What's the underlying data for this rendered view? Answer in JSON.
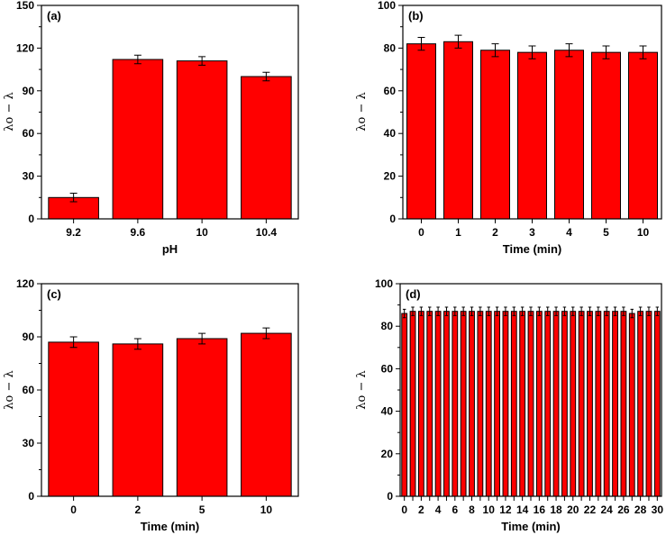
{
  "colors": {
    "bar_fill": "#ff0000",
    "bar_stroke": "#000000",
    "axis": "#000000"
  },
  "chart_data": [
    {
      "type": "bar",
      "panel_label": "(a)",
      "categories": [
        "9.2",
        "9.6",
        "10",
        "10.4"
      ],
      "values": [
        15,
        112,
        111,
        100
      ],
      "errors": [
        3,
        3,
        3,
        3
      ],
      "xlabel": "pH",
      "ylabel": "λo − λ",
      "ylim": [
        0,
        150
      ],
      "yticks": [
        0,
        30,
        60,
        90,
        120,
        150
      ]
    },
    {
      "type": "bar",
      "panel_label": "(b)",
      "categories": [
        "0",
        "1",
        "2",
        "3",
        "4",
        "5",
        "10"
      ],
      "values": [
        82,
        83,
        79,
        78,
        79,
        78,
        78
      ],
      "errors": [
        3,
        3,
        3,
        3,
        3,
        3,
        3
      ],
      "xlabel": "Time (min)",
      "ylabel": "λo − λ",
      "ylim": [
        0,
        100
      ],
      "yticks": [
        0,
        20,
        40,
        60,
        80,
        100
      ]
    },
    {
      "type": "bar",
      "panel_label": "(c)",
      "categories": [
        "0",
        "2",
        "5",
        "10"
      ],
      "values": [
        87,
        86,
        89,
        92
      ],
      "errors": [
        3,
        3,
        3,
        3
      ],
      "xlabel": "Time (min)",
      "ylabel": "λo − λ",
      "ylim": [
        0,
        120
      ],
      "yticks": [
        0,
        30,
        60,
        90,
        120
      ]
    },
    {
      "type": "bar",
      "panel_label": "(d)",
      "categories": [
        "0",
        "1",
        "2",
        "3",
        "4",
        "5",
        "6",
        "7",
        "8",
        "9",
        "10",
        "11",
        "12",
        "13",
        "14",
        "15",
        "16",
        "17",
        "18",
        "19",
        "20",
        "21",
        "22",
        "23",
        "24",
        "25",
        "26",
        "27",
        "28",
        "29",
        "30"
      ],
      "tick_labels": [
        "0",
        "",
        "2",
        "",
        "4",
        "",
        "6",
        "",
        "8",
        "",
        "10",
        "",
        "12",
        "",
        "14",
        "",
        "16",
        "",
        "18",
        "",
        "20",
        "",
        "22",
        "",
        "24",
        "",
        "26",
        "",
        "28",
        "",
        "30"
      ],
      "values": [
        86,
        87,
        87,
        87,
        87,
        87,
        87,
        87,
        87,
        87,
        87,
        87,
        87,
        87,
        87,
        87,
        87,
        87,
        87,
        87,
        87,
        87,
        87,
        87,
        87,
        87,
        87,
        86,
        87,
        87,
        87
      ],
      "errors": [
        2,
        2,
        2,
        2,
        2,
        2,
        2,
        2,
        2,
        2,
        2,
        2,
        2,
        2,
        2,
        2,
        2,
        2,
        2,
        2,
        2,
        2,
        2,
        2,
        2,
        2,
        2,
        2,
        2,
        2,
        2
      ],
      "xlabel": "Time (min)",
      "ylabel": "λo − λ",
      "ylim": [
        0,
        100
      ],
      "yticks": [
        0,
        20,
        40,
        60,
        80,
        100
      ]
    }
  ]
}
